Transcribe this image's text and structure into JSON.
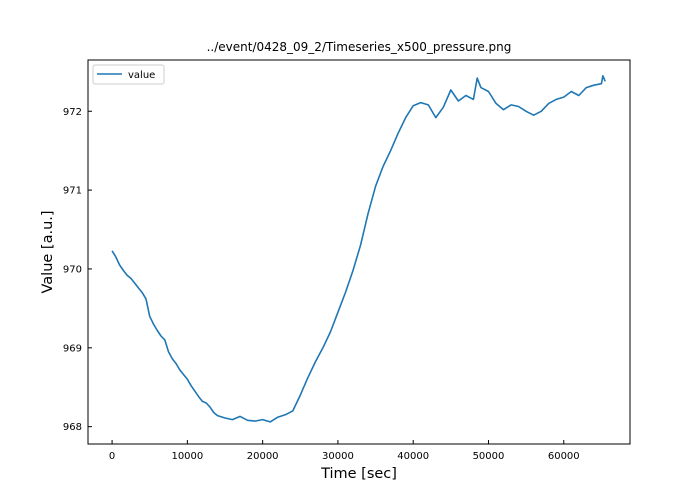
{
  "chart_data": {
    "type": "line",
    "title": "../event/0428_09_2/Timeseries_x500_pressure.png",
    "xlabel": "Time [sec]",
    "ylabel": "Value [a.u.]",
    "xlim": [
      -3200,
      68800
    ],
    "ylim": [
      967.78,
      972.65
    ],
    "xticks": [
      0,
      10000,
      20000,
      30000,
      40000,
      50000,
      60000
    ],
    "yticks": [
      968,
      969,
      970,
      971,
      972
    ],
    "grid": false,
    "legend": {
      "position": "top-left",
      "entries": [
        "value"
      ]
    },
    "line_color": "#1f77b4",
    "series": [
      {
        "name": "value",
        "points": [
          [
            0,
            970.23
          ],
          [
            500,
            970.15
          ],
          [
            1000,
            970.05
          ],
          [
            1500,
            969.98
          ],
          [
            2000,
            969.92
          ],
          [
            2500,
            969.88
          ],
          [
            3000,
            969.82
          ],
          [
            3500,
            969.76
          ],
          [
            4000,
            969.7
          ],
          [
            4500,
            969.62
          ],
          [
            5000,
            969.4
          ],
          [
            5500,
            969.3
          ],
          [
            6000,
            969.22
          ],
          [
            6500,
            969.15
          ],
          [
            7000,
            969.1
          ],
          [
            7500,
            968.95
          ],
          [
            8000,
            968.86
          ],
          [
            8500,
            968.8
          ],
          [
            9000,
            968.72
          ],
          [
            9500,
            968.66
          ],
          [
            10000,
            968.6
          ],
          [
            10500,
            968.52
          ],
          [
            11000,
            968.45
          ],
          [
            11500,
            968.38
          ],
          [
            12000,
            968.32
          ],
          [
            12500,
            968.3
          ],
          [
            13000,
            968.25
          ],
          [
            13500,
            968.18
          ],
          [
            14000,
            968.14
          ],
          [
            15000,
            968.11
          ],
          [
            16000,
            968.09
          ],
          [
            17000,
            968.13
          ],
          [
            18000,
            968.08
          ],
          [
            19000,
            968.07
          ],
          [
            20000,
            968.09
          ],
          [
            21000,
            968.06
          ],
          [
            22000,
            968.12
          ],
          [
            23000,
            968.15
          ],
          [
            24000,
            968.2
          ],
          [
            25000,
            968.4
          ],
          [
            26000,
            968.62
          ],
          [
            27000,
            968.82
          ],
          [
            28000,
            969.0
          ],
          [
            29000,
            969.2
          ],
          [
            30000,
            969.45
          ],
          [
            31000,
            969.7
          ],
          [
            32000,
            969.98
          ],
          [
            33000,
            970.3
          ],
          [
            34000,
            970.7
          ],
          [
            35000,
            971.05
          ],
          [
            36000,
            971.3
          ],
          [
            37000,
            971.5
          ],
          [
            38000,
            971.72
          ],
          [
            39000,
            971.92
          ],
          [
            40000,
            972.07
          ],
          [
            41000,
            972.11
          ],
          [
            42000,
            972.08
          ],
          [
            43000,
            971.92
          ],
          [
            44000,
            972.05
          ],
          [
            45000,
            972.27
          ],
          [
            46000,
            972.13
          ],
          [
            47000,
            972.2
          ],
          [
            48000,
            972.15
          ],
          [
            48500,
            972.42
          ],
          [
            49000,
            972.3
          ],
          [
            50000,
            972.25
          ],
          [
            51000,
            972.1
          ],
          [
            52000,
            972.02
          ],
          [
            53000,
            972.08
          ],
          [
            54000,
            972.06
          ],
          [
            55000,
            972.0
          ],
          [
            56000,
            971.95
          ],
          [
            57000,
            972.0
          ],
          [
            58000,
            972.1
          ],
          [
            59000,
            972.15
          ],
          [
            60000,
            972.18
          ],
          [
            61000,
            972.25
          ],
          [
            62000,
            972.2
          ],
          [
            63000,
            972.3
          ],
          [
            64000,
            972.33
          ],
          [
            65000,
            972.35
          ],
          [
            65200,
            972.45
          ],
          [
            65500,
            972.38
          ]
        ]
      }
    ]
  }
}
